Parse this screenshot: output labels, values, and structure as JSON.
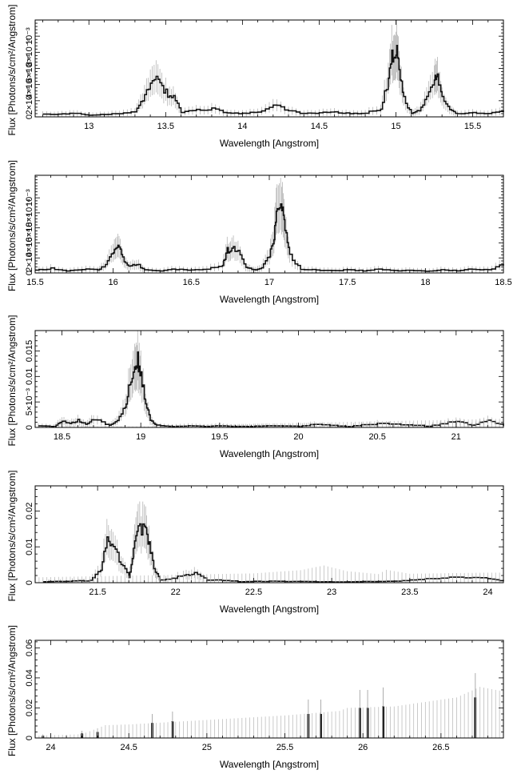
{
  "chart_data": [
    {
      "type": "line",
      "title": "",
      "xlabel": "Wavelength [Angstrom]",
      "ylabel": "Flux [Photons/s/cm²/Angstrom]",
      "xlim": [
        12.65,
        15.7
      ],
      "ylim": [
        0,
        0.0012
      ],
      "xticks": [
        13,
        13.5,
        14,
        14.5,
        15,
        15.5
      ],
      "xtick_labels": [
        "13",
        "13.5",
        "14",
        "14.5",
        "15",
        "15.5"
      ],
      "yticks": [
        0,
        0.0002,
        0.0004,
        0.0006,
        0.0008,
        0.001
      ],
      "ytick_labels": [
        "0",
        "2×10⁻⁴",
        "4×10⁻⁴",
        "6×10⁻⁴",
        "8×10⁻⁴",
        "10⁻³"
      ],
      "grid": false,
      "series": [
        {
          "style": "step-with-errorbars",
          "x": [
            12.7,
            12.8,
            12.9,
            13.0,
            13.1,
            13.2,
            13.3,
            13.35,
            13.4,
            13.45,
            13.5,
            13.55,
            13.6,
            13.7,
            13.8,
            13.9,
            14.0,
            14.1,
            14.2,
            14.3,
            14.4,
            14.5,
            14.6,
            14.7,
            14.8,
            14.9,
            14.95,
            14.98,
            15.0,
            15.02,
            15.05,
            15.1,
            15.15,
            15.2,
            15.25,
            15.27,
            15.3,
            15.35,
            15.4,
            15.5,
            15.6,
            15.7
          ],
          "y": [
            4e-05,
            3e-05,
            5e-05,
            2e-05,
            3e-05,
            4e-05,
            6e-05,
            0.00022,
            0.00044,
            0.00046,
            0.0003,
            0.00024,
            6e-05,
            8e-05,
            0.0001,
            5e-05,
            4e-05,
            6e-05,
            0.00014,
            8e-05,
            4e-05,
            5e-05,
            6e-05,
            4e-05,
            5e-05,
            0.0001,
            0.00048,
            0.0008,
            0.00085,
            0.0006,
            0.00022,
            4e-05,
            8e-05,
            0.00026,
            0.0005,
            0.00052,
            0.00022,
            8e-05,
            4e-05,
            5e-05,
            4e-05,
            8e-05
          ]
        }
      ]
    },
    {
      "type": "line",
      "title": "",
      "xlabel": "Wavelength [Angstrom]",
      "ylabel": "Flux [Photons/s/cm²/Angstrom]",
      "xlim": [
        15.5,
        18.5
      ],
      "ylim": [
        0,
        0.0013
      ],
      "xticks": [
        15.5,
        16,
        16.5,
        17,
        17.5,
        18,
        18.5
      ],
      "xtick_labels": [
        "15.5",
        "16",
        "16.5",
        "17",
        "17.5",
        "18",
        "18.5"
      ],
      "yticks": [
        0,
        0.0002,
        0.0004,
        0.0006,
        0.0008,
        0.001
      ],
      "ytick_labels": [
        "0",
        "2×10⁻⁴",
        "4×10⁻⁴",
        "6×10⁻⁴",
        "8×10⁻⁴",
        "10⁻³"
      ],
      "grid": false,
      "series": [
        {
          "style": "step-with-errorbars",
          "x": [
            15.5,
            15.6,
            15.7,
            15.8,
            15.9,
            15.95,
            16.0,
            16.03,
            16.06,
            16.1,
            16.15,
            16.2,
            16.3,
            16.4,
            16.5,
            16.6,
            16.7,
            16.73,
            16.76,
            16.8,
            16.85,
            16.9,
            16.95,
            17.0,
            17.03,
            17.05,
            17.08,
            17.1,
            17.13,
            17.2,
            17.3,
            17.4,
            17.5,
            17.6,
            17.7,
            17.8,
            17.9,
            18.0,
            18.1,
            18.2,
            18.3,
            18.4,
            18.5
          ],
          "y": [
            4e-05,
            6e-05,
            3e-05,
            5e-05,
            4e-05,
            0.0001,
            0.00028,
            0.00036,
            0.0002,
            8e-05,
            0.00012,
            4e-05,
            3e-05,
            5e-05,
            4e-05,
            5e-05,
            0.0001,
            0.0003,
            0.00034,
            0.00026,
            8e-05,
            4e-05,
            6e-05,
            0.00024,
            0.00052,
            0.0008,
            0.00088,
            0.00062,
            0.00022,
            5e-05,
            4e-05,
            3e-05,
            4e-05,
            3e-05,
            5e-05,
            3e-05,
            4e-05,
            2e-05,
            4e-05,
            3e-05,
            5e-05,
            4e-05,
            0.00012
          ]
        }
      ]
    },
    {
      "type": "line",
      "title": "",
      "xlabel": "Wavelength [Angstrom]",
      "ylabel": "Flux [Photons/s/cm²/Angstrom]",
      "xlim": [
        18.33,
        21.3
      ],
      "ylim": [
        0,
        0.019
      ],
      "xticks": [
        18.5,
        19,
        19.5,
        20,
        20.5,
        21
      ],
      "xtick_labels": [
        "18.5",
        "19",
        "19.5",
        "20",
        "20.5",
        "21"
      ],
      "yticks": [
        0,
        0.005,
        0.01,
        0.015
      ],
      "ytick_labels": [
        "0",
        "5×10⁻³",
        "0.01",
        "0.015"
      ],
      "grid": false,
      "series": [
        {
          "style": "step-with-errorbars",
          "x": [
            18.35,
            18.45,
            18.5,
            18.55,
            18.6,
            18.65,
            18.7,
            18.8,
            18.85,
            18.9,
            18.93,
            18.96,
            18.98,
            19.0,
            19.03,
            19.06,
            19.1,
            19.2,
            19.3,
            19.4,
            19.5,
            19.6,
            19.7,
            19.8,
            20.0,
            20.1,
            20.3,
            20.5,
            20.8,
            21.0,
            21.1,
            21.2,
            21.3
          ],
          "y": [
            0.0003,
            0.0002,
            0.0012,
            0.0008,
            0.0014,
            0.0006,
            0.0016,
            0.0004,
            0.0012,
            0.004,
            0.009,
            0.013,
            0.0135,
            0.01,
            0.0045,
            0.0015,
            0.0004,
            0.0002,
            0.0003,
            0.0002,
            0.0003,
            0.0002,
            0.0002,
            0.0003,
            0.0002,
            0.0006,
            0.0002,
            0.0008,
            0.0002,
            0.0012,
            0.0004,
            0.0014,
            0.0003
          ]
        },
        {
          "style": "grey-errorbars",
          "x": [
            19.1,
            19.5,
            20.0,
            20.5,
            21.0,
            21.3
          ],
          "y": [
            0.0002,
            0.0006,
            0.0009,
            0.0012,
            0.0015,
            0.0017
          ]
        }
      ]
    },
    {
      "type": "line",
      "title": "",
      "xlabel": "Wavelength [Angstrom]",
      "ylabel": "Flux [Photons/s/cm²/Angstrom]",
      "xlim": [
        21.1,
        24.1
      ],
      "ylim": [
        0,
        0.027
      ],
      "xticks": [
        21.5,
        22,
        22.5,
        23,
        23.5,
        24
      ],
      "xtick_labels": [
        "21.5",
        "22",
        "22.5",
        "23",
        "23.5",
        "24"
      ],
      "yticks": [
        0,
        0.01,
        0.02
      ],
      "ytick_labels": [
        "0",
        "0.01",
        "0.02"
      ],
      "grid": false,
      "series": [
        {
          "style": "step-with-errorbars",
          "x": [
            21.15,
            21.3,
            21.45,
            21.52,
            21.56,
            21.6,
            21.65,
            21.7,
            21.73,
            21.76,
            21.8,
            21.83,
            21.86,
            21.9,
            22.05,
            22.12,
            22.2,
            22.4,
            22.6,
            22.8,
            23.0,
            23.2,
            23.4,
            23.6,
            23.8,
            24.0,
            24.1
          ],
          "y": [
            0.0003,
            0.0004,
            0.0006,
            0.0035,
            0.0125,
            0.0095,
            0.0055,
            0.0015,
            0.009,
            0.014,
            0.016,
            0.011,
            0.004,
            0.0008,
            0.002,
            0.0025,
            0.0008,
            0.0003,
            0.0004,
            0.0003,
            0.0002,
            0.0003,
            0.0004,
            0.0012,
            0.0015,
            0.0012,
            0.0005
          ]
        },
        {
          "style": "grey-errorbars",
          "x": [
            21.1,
            21.5,
            22.0,
            22.5,
            22.8,
            22.95,
            23.1,
            23.3,
            23.35,
            23.5,
            24.0,
            24.1
          ],
          "y": [
            0.0015,
            0.0018,
            0.0022,
            0.0026,
            0.0035,
            0.0048,
            0.0032,
            0.0024,
            0.0036,
            0.0025,
            0.0028,
            0.0028
          ]
        }
      ]
    },
    {
      "type": "line",
      "title": "",
      "xlabel": "Wavelength [Angstrom]",
      "ylabel": "Flux [Photons/s/cm²/Angstrom]",
      "xlim": [
        23.9,
        26.9
      ],
      "ylim": [
        0,
        0.065
      ],
      "xticks": [
        24,
        24.5,
        25,
        25.5,
        26,
        26.5
      ],
      "xtick_labels": [
        "24",
        "24.5",
        "25",
        "25.5",
        "26",
        "26.5"
      ],
      "yticks": [
        0,
        0.02,
        0.04,
        0.06
      ],
      "ytick_labels": [
        "0",
        "0.02",
        "0.04",
        "0.06"
      ],
      "grid": false,
      "series": [
        {
          "style": "data-bars",
          "x": [
            23.95,
            24.2,
            24.3,
            24.65,
            24.78,
            25.65,
            25.73,
            25.98,
            26.03,
            26.13,
            26.72
          ],
          "y": [
            0.0015,
            0.003,
            0.004,
            0.01,
            0.011,
            0.016,
            0.016,
            0.02,
            0.02,
            0.021,
            0.027
          ]
        },
        {
          "style": "grey-errorbars",
          "x": [
            23.9,
            24.2,
            24.35,
            24.5,
            25.0,
            25.5,
            25.85,
            25.9,
            26.2,
            26.6,
            26.75,
            26.9
          ],
          "y": [
            0.0015,
            0.0025,
            0.0085,
            0.009,
            0.012,
            0.015,
            0.018,
            0.02,
            0.021,
            0.027,
            0.034,
            0.031
          ]
        }
      ]
    }
  ]
}
